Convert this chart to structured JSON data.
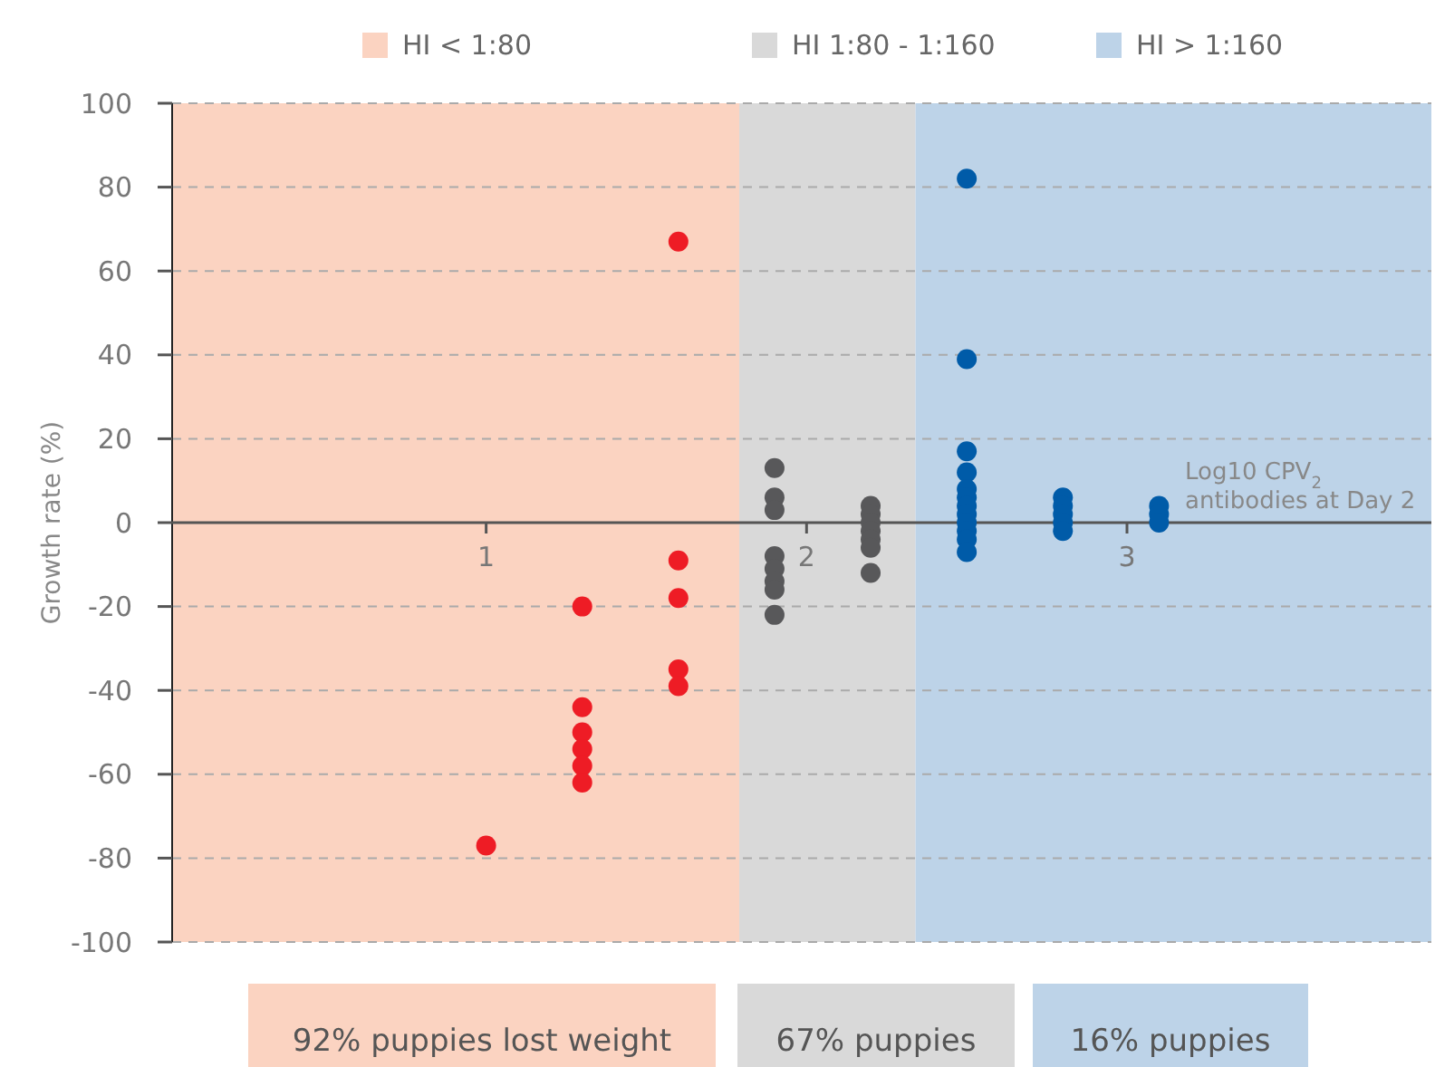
{
  "chart_data": {
    "type": "scatter",
    "ylabel": "Growth rate (%)",
    "xlabel": "Log10 CPV$_{2}$ antibodies at Day 2",
    "xlim": [
      0.02,
      3.95
    ],
    "xticks": [
      1,
      2,
      3
    ],
    "ylim": [
      -100,
      100
    ],
    "yticks": [
      -100,
      -80,
      -60,
      -40,
      -20,
      0,
      20,
      40,
      60,
      80,
      100
    ],
    "grid": "y",
    "legend": "top",
    "marker": "circle",
    "series": [
      {
        "color": "#ee1c25",
        "x": [
          1.0,
          1.3,
          1.3,
          1.3,
          1.3,
          1.3,
          1.3,
          1.6,
          1.6,
          1.6,
          1.6,
          1.6
        ],
        "values": [
          -77,
          -20,
          -44,
          -50,
          -54,
          -58,
          -62,
          67,
          -9,
          -18,
          -35,
          -39
        ]
      },
      {
        "color": "#58585a",
        "x": [
          1.9,
          1.9,
          1.9,
          1.9,
          1.9,
          1.9,
          1.9,
          1.9,
          2.2,
          2.2,
          2.2,
          2.2,
          2.2,
          2.2,
          2.2
        ],
        "values": [
          13,
          6,
          3,
          -8,
          -11,
          -14,
          -16,
          -22,
          4,
          2,
          0,
          -2,
          -4,
          -6,
          -12
        ]
      },
      {
        "color": "#005ba8",
        "x": [
          2.5,
          2.5,
          2.5,
          2.5,
          2.5,
          2.5,
          2.5,
          2.5,
          2.5,
          2.5,
          2.5,
          2.5,
          2.8,
          2.8,
          2.8,
          2.8,
          2.8,
          3.1,
          3.1,
          3.1
        ],
        "values": [
          82,
          39,
          17,
          12,
          8,
          6,
          4,
          2,
          0,
          -2,
          -4,
          -7,
          6,
          4,
          2,
          0,
          -2,
          4,
          2,
          0
        ]
      }
    ],
    "bands": [
      {
        "axis": "x",
        "from": 0.02,
        "to": 1.79,
        "label": "HI < 1:80",
        "color": "#fbd3c1"
      },
      {
        "axis": "x",
        "from": 1.79,
        "to": 2.34,
        "label": "HI 1:80 - 1:160",
        "color": "#d9d9d9"
      },
      {
        "axis": "x",
        "from": 2.34,
        "to": 3.95,
        "label": "HI > 1:160",
        "color": "#bdd3e8"
      }
    ],
    "annotations": [
      "92% puppies lost weight",
      "67% puppies",
      "16% puppies"
    ]
  }
}
